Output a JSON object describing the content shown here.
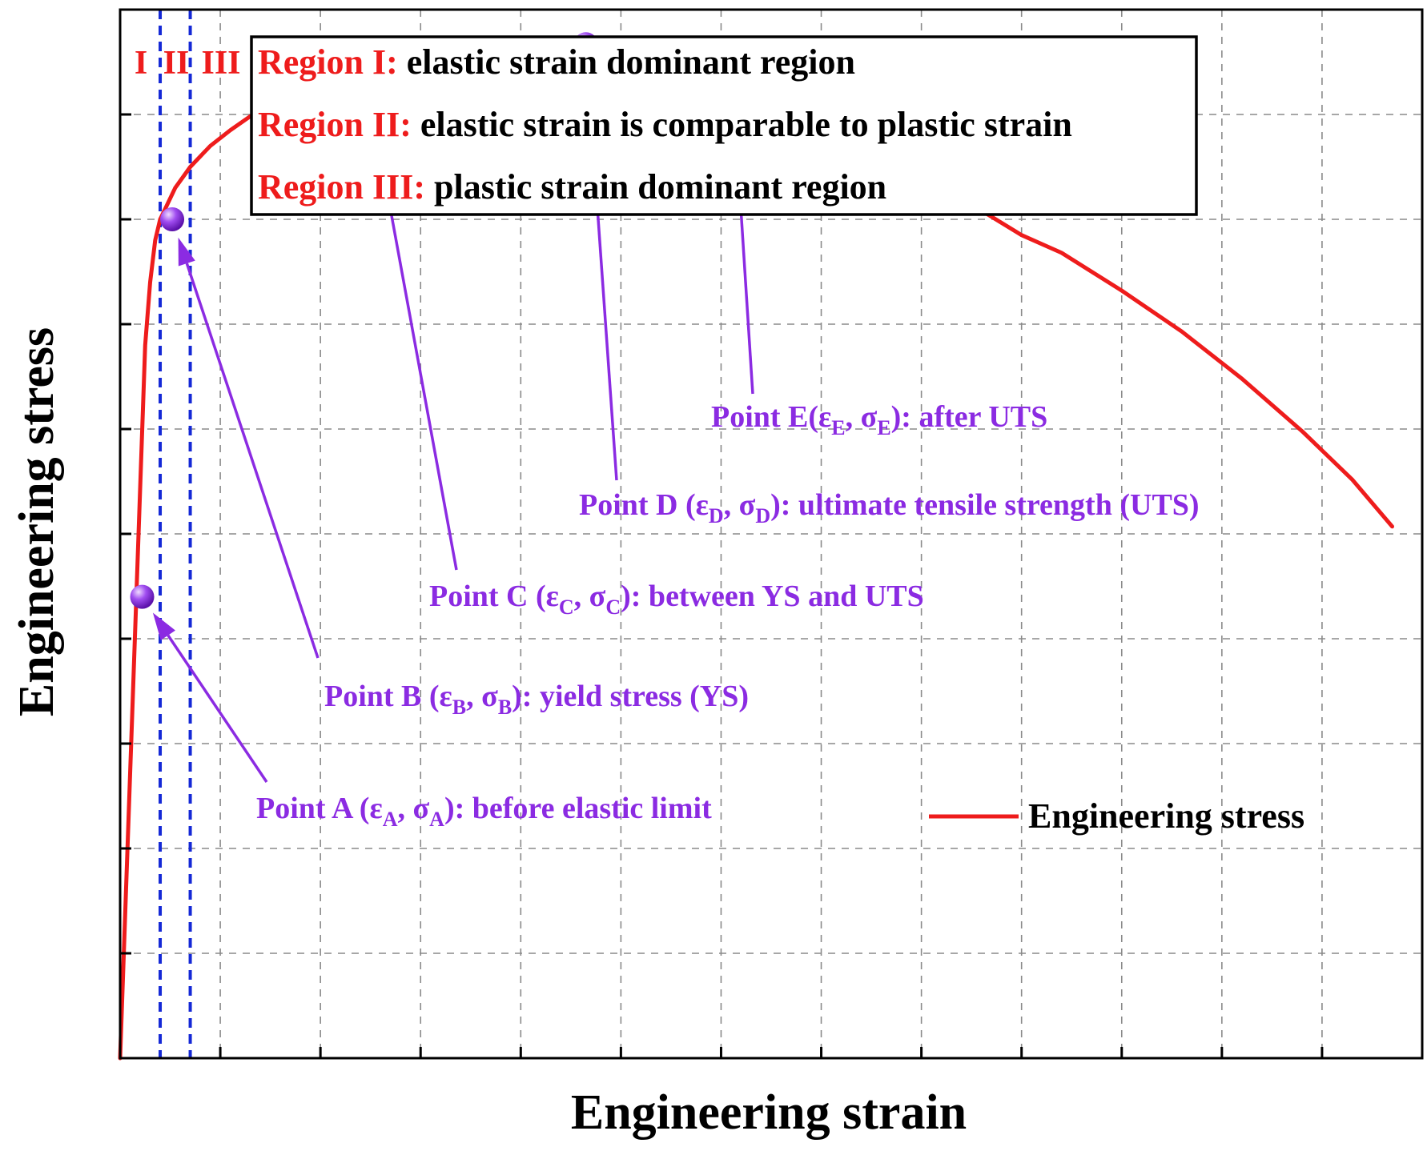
{
  "chart_data": {
    "type": "line",
    "title": "",
    "xlabel": "Engineering strain",
    "ylabel": "Engineering stress",
    "xlim": [
      0,
      13
    ],
    "ylim": [
      0,
      10
    ],
    "grid": true,
    "legend": {
      "position": "bottom-right",
      "entries": [
        "Engineering stress"
      ]
    },
    "series": [
      {
        "name": "Engineering stress",
        "color": "#ee1c1c",
        "x": [
          0,
          0.25,
          0.3,
          0.35,
          0.4,
          0.45,
          0.55,
          0.7,
          0.9,
          1.1,
          1.4,
          1.8,
          2.2,
          2.7,
          3.2,
          3.8,
          4.4,
          5.0,
          5.6,
          6.1,
          6.6,
          7.2,
          7.8,
          8.4,
          9.0,
          9.4,
          10.0,
          10.6,
          11.2,
          11.8,
          12.3,
          12.7
        ],
        "y": [
          0,
          6.8,
          7.4,
          7.8,
          8.0,
          8.1,
          8.3,
          8.5,
          8.7,
          8.85,
          9.05,
          9.25,
          9.42,
          9.52,
          9.58,
          9.62,
          9.63,
          9.58,
          9.45,
          9.3,
          9.08,
          8.82,
          8.52,
          8.2,
          7.85,
          7.68,
          7.32,
          6.93,
          6.48,
          5.98,
          5.52,
          5.07
        ]
      }
    ],
    "region_lines_x": [
      0.4,
      0.7
    ],
    "region_labels": [
      "I",
      "II",
      "III"
    ],
    "regions": [
      {
        "name": "Region I:",
        "desc": "elastic strain dominant region"
      },
      {
        "name": "Region II:",
        "desc": "elastic strain is comparable to plastic strain"
      },
      {
        "name": "Region III:",
        "desc": "plastic strain dominant region"
      }
    ],
    "points": [
      {
        "id": "A",
        "x": 0.22,
        "y": 4.4,
        "label": {
          "pre": "Point A (ε",
          "s1": "A",
          "mid": ", σ",
          "s2": "A",
          "post": "): before elastic limit"
        }
      },
      {
        "id": "B",
        "x": 0.52,
        "y": 8.0,
        "label": {
          "pre": "Point B (ε",
          "s1": "B",
          "mid": ", σ",
          "s2": "B",
          "post": "): yield stress (YS)"
        }
      },
      {
        "id": "C",
        "x": 2.42,
        "y": 9.55,
        "label": {
          "pre": "Point C (ε",
          "s1": "C",
          "mid": ", σ",
          "s2": "C",
          "post": "): between YS and UTS"
        }
      },
      {
        "id": "D",
        "x": 4.65,
        "y": 9.67,
        "label": {
          "pre": "Point D (ε",
          "s1": "D",
          "mid": ", σ",
          "s2": "D",
          "post": "): ultimate tensile strength (UTS)"
        }
      },
      {
        "id": "E",
        "x": 6.1,
        "y": 9.55,
        "label": {
          "pre": "Point E(ε",
          "s1": "E",
          "mid": ", σ",
          "s2": "E",
          "post": "): after UTS"
        }
      }
    ],
    "colors": {
      "curve": "#ee1c1c",
      "annotation": "#8b2be2",
      "region_text": "#ee1c1c",
      "region_lines": "#1428d6",
      "grid": "#8a8a8a"
    }
  }
}
